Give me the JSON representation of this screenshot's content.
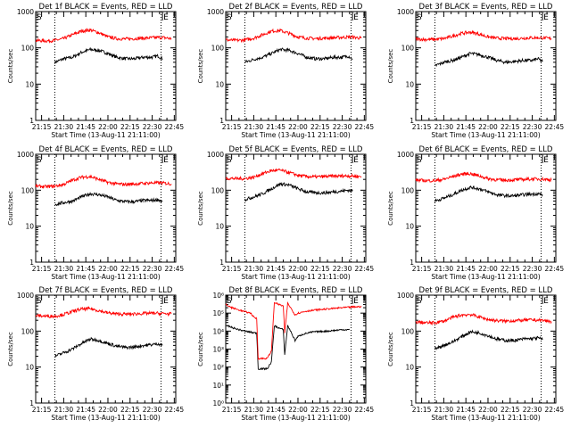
{
  "figure": {
    "xlabel": "Start Time (13-Aug-11 21:11:00)",
    "ylabel": "Counts/sec",
    "x_ticks": [
      "21:15",
      "21:30",
      "21:45",
      "22:00",
      "22:15",
      "22:30",
      "22:45"
    ],
    "colors": {
      "events": "#000000",
      "lld": "#ff0000",
      "axes": "#000000"
    }
  },
  "chart_data": [
    {
      "type": "line",
      "title": "Det 1f BLACK = Events, RED = LLD",
      "xlim": [
        "21:11",
        "22:46"
      ],
      "ylim": [
        1,
        1000
      ],
      "y_scale": "log",
      "y_ticks": [
        "1",
        "10",
        "100",
        "1000"
      ],
      "markers": [
        {
          "x": "21:11",
          "label": "S"
        },
        {
          "x": "22:37",
          "label": "E"
        }
      ],
      "dotted_lines": [
        "21:24",
        "22:36"
      ],
      "series": [
        {
          "color": "#000000",
          "x": [
            "21:24",
            "21:30",
            "21:36",
            "21:42",
            "21:48",
            "21:54",
            "22:00",
            "22:06",
            "22:12",
            "22:18",
            "22:24",
            "22:30",
            "22:34",
            "22:37"
          ],
          "values": [
            40,
            50,
            55,
            75,
            90,
            85,
            70,
            55,
            50,
            50,
            55,
            55,
            60,
            50
          ]
        },
        {
          "color": "#ff0000",
          "x": [
            "21:11",
            "21:18",
            "21:24",
            "21:30",
            "21:36",
            "21:42",
            "21:48",
            "21:54",
            "22:00",
            "22:06",
            "22:12",
            "22:18",
            "22:24",
            "22:30",
            "22:36",
            "22:43"
          ],
          "values": [
            160,
            155,
            160,
            180,
            230,
            290,
            310,
            260,
            200,
            180,
            175,
            180,
            185,
            190,
            195,
            180
          ]
        }
      ]
    },
    {
      "type": "line",
      "title": "Det 2f BLACK = Events, RED = LLD",
      "xlim": [
        "21:11",
        "22:46"
      ],
      "ylim": [
        1,
        1000
      ],
      "y_scale": "log",
      "y_ticks": [
        "1",
        "10",
        "100",
        "1000"
      ],
      "markers": [
        {
          "x": "21:11",
          "label": "S"
        },
        {
          "x": "22:37",
          "label": "E"
        }
      ],
      "dotted_lines": [
        "21:24",
        "22:36"
      ],
      "series": [
        {
          "color": "#000000",
          "x": [
            "21:24",
            "21:30",
            "21:36",
            "21:42",
            "21:48",
            "21:54",
            "22:00",
            "22:06",
            "22:12",
            "22:18",
            "22:24",
            "22:30",
            "22:34",
            "22:37"
          ],
          "values": [
            40,
            48,
            55,
            70,
            90,
            85,
            70,
            55,
            50,
            50,
            55,
            55,
            60,
            50
          ]
        },
        {
          "color": "#ff0000",
          "x": [
            "21:11",
            "21:18",
            "21:24",
            "21:30",
            "21:36",
            "21:42",
            "21:48",
            "21:54",
            "22:00",
            "22:06",
            "22:12",
            "22:18",
            "22:24",
            "22:30",
            "22:36",
            "22:43"
          ],
          "values": [
            165,
            160,
            165,
            185,
            230,
            290,
            300,
            250,
            200,
            185,
            180,
            185,
            190,
            195,
            200,
            185
          ]
        }
      ]
    },
    {
      "type": "line",
      "title": "Det 3f BLACK = Events, RED = LLD",
      "xlim": [
        "21:11",
        "22:46"
      ],
      "ylim": [
        1,
        1000
      ],
      "y_scale": "log",
      "y_ticks": [
        "1",
        "10",
        "100",
        "1000"
      ],
      "markers": [
        {
          "x": "21:11",
          "label": "S"
        },
        {
          "x": "22:37",
          "label": "E"
        }
      ],
      "dotted_lines": [
        "21:24",
        "22:36"
      ],
      "series": [
        {
          "color": "#000000",
          "x": [
            "21:24",
            "21:30",
            "21:36",
            "21:42",
            "21:48",
            "21:54",
            "22:00",
            "22:06",
            "22:12",
            "22:18",
            "22:24",
            "22:30",
            "22:34",
            "22:37"
          ],
          "values": [
            32,
            40,
            45,
            55,
            70,
            65,
            55,
            45,
            40,
            42,
            45,
            45,
            50,
            42
          ]
        },
        {
          "color": "#ff0000",
          "x": [
            "21:11",
            "21:18",
            "21:24",
            "21:30",
            "21:36",
            "21:42",
            "21:48",
            "21:54",
            "22:00",
            "22:06",
            "22:12",
            "22:18",
            "22:24",
            "22:30",
            "22:36",
            "22:43"
          ],
          "values": [
            175,
            170,
            170,
            180,
            210,
            250,
            270,
            240,
            200,
            185,
            180,
            180,
            185,
            190,
            190,
            180
          ]
        }
      ]
    },
    {
      "type": "line",
      "title": "Det 4f BLACK = Events, RED = LLD",
      "xlim": [
        "21:11",
        "22:46"
      ],
      "ylim": [
        1,
        1000
      ],
      "y_scale": "log",
      "y_ticks": [
        "1",
        "10",
        "100",
        "1000"
      ],
      "markers": [
        {
          "x": "21:11",
          "label": "S"
        },
        {
          "x": "22:37",
          "label": "E"
        }
      ],
      "dotted_lines": [
        "21:24",
        "22:36"
      ],
      "series": [
        {
          "color": "#000000",
          "x": [
            "21:24",
            "21:30",
            "21:36",
            "21:42",
            "21:48",
            "21:54",
            "22:00",
            "22:06",
            "22:12",
            "22:18",
            "22:24",
            "22:30",
            "22:34",
            "22:37"
          ],
          "values": [
            40,
            45,
            50,
            65,
            80,
            75,
            65,
            52,
            48,
            48,
            52,
            52,
            55,
            48
          ]
        },
        {
          "color": "#ff0000",
          "x": [
            "21:11",
            "21:18",
            "21:24",
            "21:30",
            "21:36",
            "21:42",
            "21:48",
            "21:54",
            "22:00",
            "22:06",
            "22:12",
            "22:18",
            "22:24",
            "22:30",
            "22:36",
            "22:43"
          ],
          "values": [
            130,
            125,
            130,
            145,
            190,
            230,
            240,
            200,
            165,
            150,
            145,
            150,
            155,
            160,
            160,
            150
          ]
        }
      ]
    },
    {
      "type": "line",
      "title": "Det 5f BLACK = Events, RED = LLD",
      "xlim": [
        "21:11",
        "22:46"
      ],
      "ylim": [
        1,
        1000
      ],
      "y_scale": "log",
      "y_ticks": [
        "1",
        "10",
        "100",
        "1000"
      ],
      "markers": [
        {
          "x": "21:11",
          "label": "S"
        },
        {
          "x": "22:37",
          "label": "E"
        }
      ],
      "dotted_lines": [
        "21:24",
        "22:36"
      ],
      "series": [
        {
          "color": "#000000",
          "x": [
            "21:24",
            "21:30",
            "21:36",
            "21:42",
            "21:48",
            "21:54",
            "22:00",
            "22:06",
            "22:12",
            "22:18",
            "22:24",
            "22:30",
            "22:34",
            "22:37"
          ],
          "values": [
            55,
            65,
            80,
            110,
            150,
            140,
            110,
            90,
            85,
            85,
            90,
            95,
            100,
            95
          ]
        },
        {
          "color": "#ff0000",
          "x": [
            "21:11",
            "21:18",
            "21:24",
            "21:30",
            "21:36",
            "21:42",
            "21:48",
            "21:54",
            "22:00",
            "22:06",
            "22:12",
            "22:18",
            "22:24",
            "22:30",
            "22:36",
            "22:43"
          ],
          "values": [
            215,
            210,
            210,
            230,
            290,
            350,
            360,
            310,
            260,
            240,
            235,
            240,
            245,
            250,
            250,
            240
          ]
        }
      ]
    },
    {
      "type": "line",
      "title": "Det 6f BLACK = Events, RED = LLD",
      "xlim": [
        "21:11",
        "22:46"
      ],
      "ylim": [
        1,
        1000
      ],
      "y_scale": "log",
      "y_ticks": [
        "1",
        "10",
        "100",
        "1000"
      ],
      "markers": [
        {
          "x": "21:11",
          "label": "S"
        },
        {
          "x": "22:37",
          "label": "E"
        }
      ],
      "dotted_lines": [
        "21:24",
        "22:36"
      ],
      "series": [
        {
          "color": "#000000",
          "x": [
            "21:24",
            "21:30",
            "21:36",
            "21:42",
            "21:48",
            "21:54",
            "22:00",
            "22:06",
            "22:12",
            "22:18",
            "22:24",
            "22:30",
            "22:34",
            "22:37"
          ],
          "values": [
            50,
            60,
            75,
            100,
            120,
            110,
            90,
            75,
            70,
            70,
            75,
            78,
            80,
            75
          ]
        },
        {
          "color": "#ff0000",
          "x": [
            "21:11",
            "21:18",
            "21:24",
            "21:30",
            "21:36",
            "21:42",
            "21:48",
            "21:54",
            "22:00",
            "22:06",
            "22:12",
            "22:18",
            "22:24",
            "22:30",
            "22:36",
            "22:43"
          ],
          "values": [
            190,
            185,
            185,
            200,
            240,
            280,
            290,
            250,
            210,
            195,
            190,
            195,
            200,
            205,
            205,
            195
          ]
        }
      ]
    },
    {
      "type": "line",
      "title": "Det 7f BLACK = Events, RED = LLD",
      "xlim": [
        "21:11",
        "22:46"
      ],
      "ylim": [
        1,
        1000
      ],
      "y_scale": "log",
      "y_ticks": [
        "1",
        "10",
        "100",
        "1000"
      ],
      "markers": [
        {
          "x": "21:11",
          "label": "S"
        },
        {
          "x": "22:37",
          "label": "E"
        }
      ],
      "dotted_lines": [
        "21:24",
        "22:36"
      ],
      "series": [
        {
          "color": "#000000",
          "x": [
            "21:24",
            "21:30",
            "21:36",
            "21:42",
            "21:48",
            "21:54",
            "22:00",
            "22:06",
            "22:12",
            "22:18",
            "22:24",
            "22:30",
            "22:34",
            "22:37"
          ],
          "values": [
            20,
            25,
            32,
            45,
            60,
            55,
            45,
            38,
            35,
            36,
            40,
            42,
            45,
            40
          ]
        },
        {
          "color": "#ff0000",
          "x": [
            "21:11",
            "21:18",
            "21:24",
            "21:30",
            "21:36",
            "21:42",
            "21:48",
            "21:54",
            "22:00",
            "22:06",
            "22:12",
            "22:18",
            "22:24",
            "22:30",
            "22:36",
            "22:43"
          ],
          "values": [
            270,
            260,
            260,
            290,
            350,
            410,
            420,
            370,
            320,
            300,
            295,
            300,
            310,
            315,
            310,
            300
          ]
        }
      ]
    },
    {
      "type": "line",
      "title": "Det 8f BLACK = Events, RED = LLD",
      "xlim": [
        "21:11",
        "22:46"
      ],
      "ylim": [
        1,
        1000000
      ],
      "y_scale": "log",
      "y_ticks": [
        "10⁰",
        "10¹",
        "10²",
        "10³",
        "10⁴",
        "10⁵",
        "10⁶"
      ],
      "markers": [
        {
          "x": "21:11",
          "label": "S"
        },
        {
          "x": "22:37",
          "label": "E"
        }
      ],
      "dotted_lines": [
        "21:24",
        "22:36"
      ],
      "series": [
        {
          "color": "#000000",
          "x": [
            "21:12",
            "21:16",
            "21:20",
            "21:24",
            "21:27",
            "21:30",
            "21:32",
            "21:33",
            "21:36",
            "21:39",
            "21:40",
            "21:42",
            "21:44",
            "21:47",
            "21:50",
            "21:51",
            "21:53",
            "21:55",
            "21:58",
            "22:00",
            "22:04",
            "22:10",
            "22:20",
            "22:30",
            "22:35"
          ],
          "values": [
            20000,
            15000,
            12000,
            10000,
            9000,
            8000,
            8000,
            80,
            80,
            80,
            100,
            200,
            20000,
            15000,
            12000,
            500,
            20000,
            10000,
            3000,
            5000,
            7000,
            9000,
            10000,
            12000,
            12000
          ]
        },
        {
          "color": "#ff0000",
          "x": [
            "21:11",
            "21:15",
            "21:20",
            "21:24",
            "21:28",
            "21:30",
            "21:32",
            "21:33",
            "21:36",
            "21:39",
            "21:40",
            "21:42",
            "21:44",
            "21:47",
            "21:50",
            "21:51",
            "21:53",
            "21:55",
            "21:58",
            "22:00",
            "22:06",
            "22:12",
            "22:20",
            "22:30",
            "22:38",
            "22:43"
          ],
          "values": [
            300000,
            200000,
            150000,
            120000,
            100000,
            60000,
            50000,
            300,
            300,
            300,
            400,
            800,
            400000,
            300000,
            250000,
            8000,
            350000,
            200000,
            80000,
            100000,
            130000,
            150000,
            170000,
            200000,
            220000,
            230000
          ]
        }
      ]
    },
    {
      "type": "line",
      "title": "Det 9f BLACK = Events, RED = LLD",
      "xlim": [
        "21:11",
        "22:46"
      ],
      "ylim": [
        1,
        1000
      ],
      "y_scale": "log",
      "y_ticks": [
        "1",
        "10",
        "100",
        "1000"
      ],
      "markers": [
        {
          "x": "21:11",
          "label": "S"
        },
        {
          "x": "22:37",
          "label": "E"
        }
      ],
      "dotted_lines": [
        "21:24",
        "22:36"
      ],
      "series": [
        {
          "color": "#000000",
          "x": [
            "21:24",
            "21:30",
            "21:36",
            "21:42",
            "21:48",
            "21:54",
            "22:00",
            "22:06",
            "22:12",
            "22:18",
            "22:24",
            "22:30",
            "22:34",
            "22:37"
          ],
          "values": [
            32,
            40,
            50,
            70,
            95,
            90,
            75,
            60,
            55,
            55,
            60,
            62,
            65,
            58
          ]
        },
        {
          "color": "#ff0000",
          "x": [
            "21:11",
            "21:18",
            "21:24",
            "21:30",
            "21:36",
            "21:42",
            "21:48",
            "21:54",
            "22:00",
            "22:06",
            "22:12",
            "22:18",
            "22:24",
            "22:30",
            "22:36",
            "22:43"
          ],
          "values": [
            180,
            170,
            170,
            190,
            240,
            280,
            290,
            250,
            210,
            195,
            190,
            195,
            200,
            205,
            200,
            185
          ]
        }
      ]
    }
  ]
}
